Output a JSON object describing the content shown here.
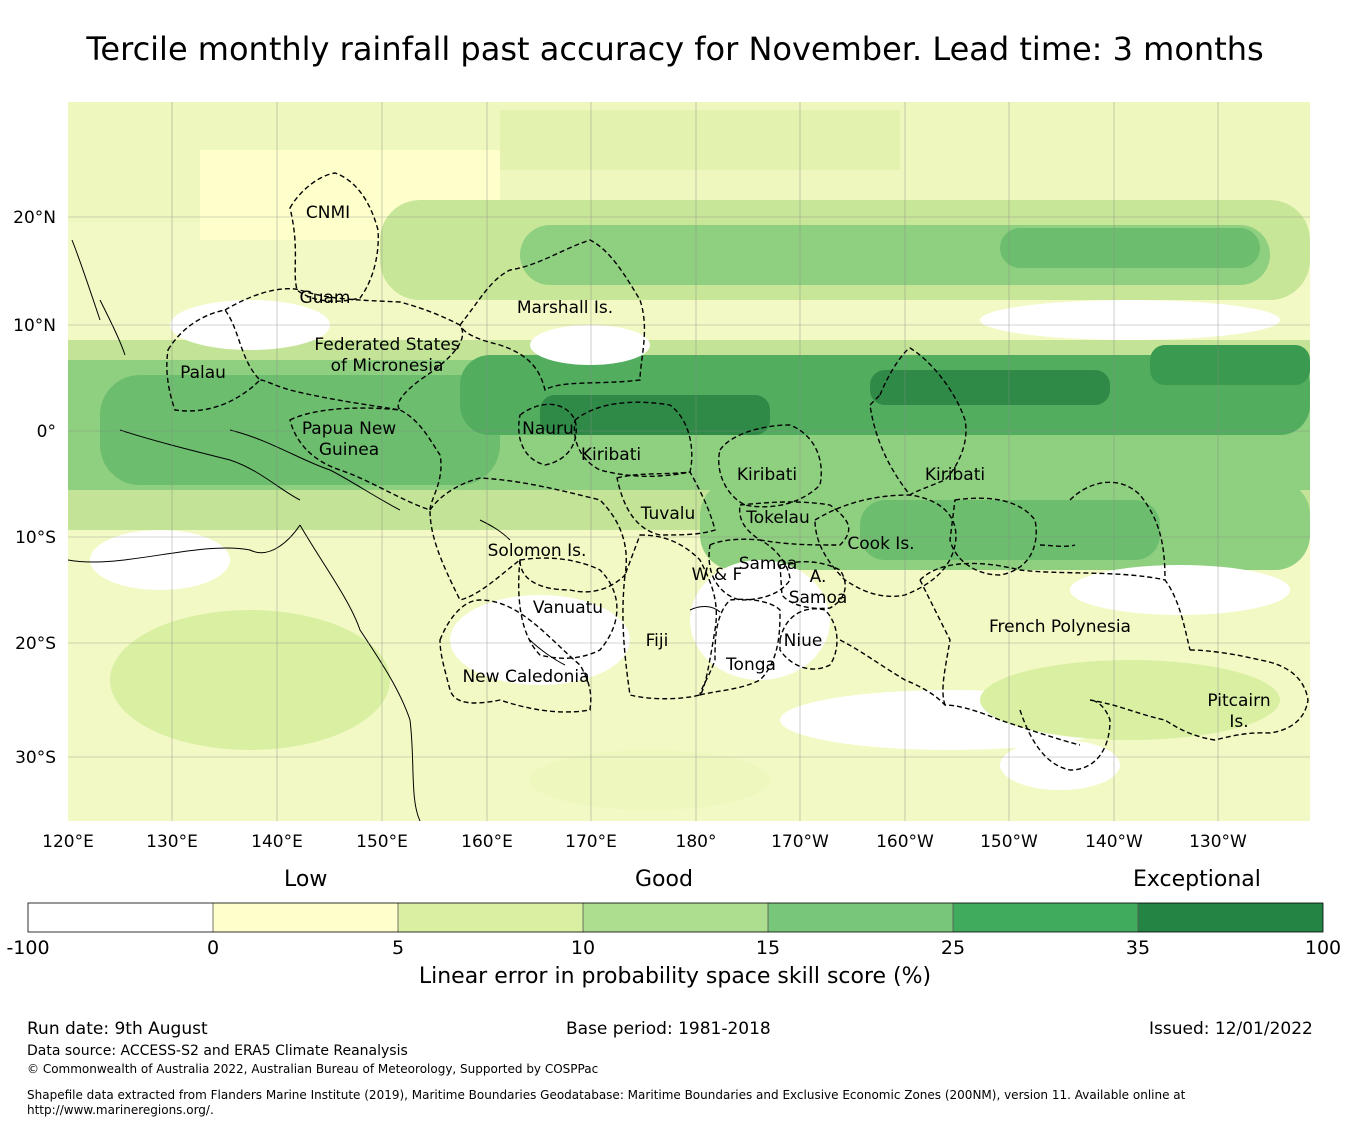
{
  "title": "Tercile monthly rainfall past accuracy for November. Lead time: 3 months",
  "map": {
    "lon_labels": [
      "120°E",
      "130°E",
      "140°E",
      "150°E",
      "160°E",
      "170°E",
      "180°",
      "170°W",
      "160°W",
      "150°W",
      "140°W",
      "130°W"
    ],
    "lat_labels": [
      "20°N",
      "10°N",
      "0°",
      "10°S",
      "20°S",
      "30°S"
    ],
    "regions": [
      {
        "name": "CNMI"
      },
      {
        "name": "Guam"
      },
      {
        "name": "Marshall Is."
      },
      {
        "name": "Federated States\nof Micronesia"
      },
      {
        "name": "Palau"
      },
      {
        "name": "Papua New\nGuinea"
      },
      {
        "name": "Nauru"
      },
      {
        "name": "Kiribati"
      },
      {
        "name": "Kiribati"
      },
      {
        "name": "Kiribati"
      },
      {
        "name": "Tuvalu"
      },
      {
        "name": "Tokelau"
      },
      {
        "name": "Solomon Is."
      },
      {
        "name": "Cook Is."
      },
      {
        "name": "Samoa"
      },
      {
        "name": "W & F"
      },
      {
        "name": "A.\nSamoa"
      },
      {
        "name": "Vanuatu"
      },
      {
        "name": "French Polynesia"
      },
      {
        "name": "Fiji"
      },
      {
        "name": "Niue"
      },
      {
        "name": "Tonga"
      },
      {
        "name": "New Caledonia"
      },
      {
        "name": "Pitcairn\nIs."
      }
    ]
  },
  "colorbar": {
    "categories": [
      "Low",
      "Good",
      "Exceptional"
    ],
    "ticks": [
      "-100",
      "0",
      "5",
      "10",
      "15",
      "25",
      "35",
      "100"
    ],
    "colors": [
      "#ffffff",
      "#ffffcc",
      "#d9f0a3",
      "#addd8e",
      "#78c679",
      "#41ab5d",
      "#238443"
    ],
    "label": "Linear error in probability space skill score (%)"
  },
  "footer": {
    "run_date": "Run date: 9th August",
    "base_period": "Base period: 1981-2018",
    "issued": "Issued: 12/01/2022",
    "data_source": "Data source: ACCESS-S2 and ERA5 Climate Reanalysis",
    "copyright": "© Commonwealth of Australia 2022, Australian Bureau of Meteorology, Supported by COSPPac",
    "shapefile": "Shapefile data extracted from Flanders Marine Institute (2019), Maritime Boundaries Geodatabase: Maritime Boundaries and Exclusive Economic Zones (200NM), version 11. Available online at http://www.marineregions.org/."
  }
}
